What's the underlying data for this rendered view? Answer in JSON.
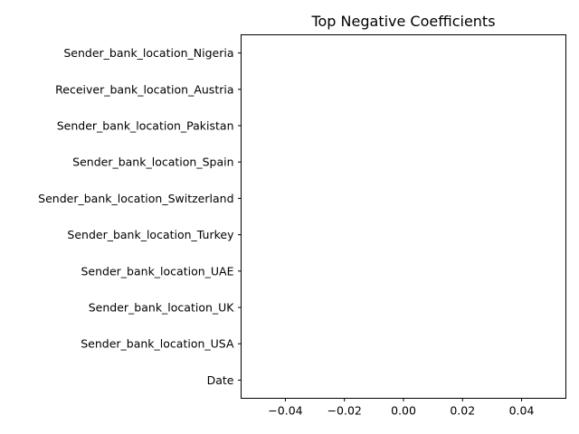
{
  "chart_data": {
    "type": "bar",
    "orientation": "horizontal",
    "title": "Top Negative Coefficients",
    "xlabel": "",
    "ylabel": "",
    "categories": [
      "Sender_bank_location_Nigeria",
      "Receiver_bank_location_Austria",
      "Sender_bank_location_Pakistan",
      "Sender_bank_location_Spain",
      "Sender_bank_location_Switzerland",
      "Sender_bank_location_Turkey",
      "Sender_bank_location_UAE",
      "Sender_bank_location_UK",
      "Sender_bank_location_USA",
      "Date"
    ],
    "values": [
      0,
      0,
      0,
      0,
      0,
      0,
      0,
      0,
      0,
      0
    ],
    "xlim": [
      -0.055,
      0.055
    ],
    "xticks": [
      -0.04,
      -0.02,
      0.0,
      0.02,
      0.04
    ],
    "xtick_labels": [
      "−0.04",
      "−0.02",
      "0.00",
      "0.02",
      "0.04"
    ],
    "grid": false,
    "legend": "none",
    "colors": {
      "bar": "#1f77b4",
      "axis": "#000000",
      "background": "#ffffff"
    }
  }
}
